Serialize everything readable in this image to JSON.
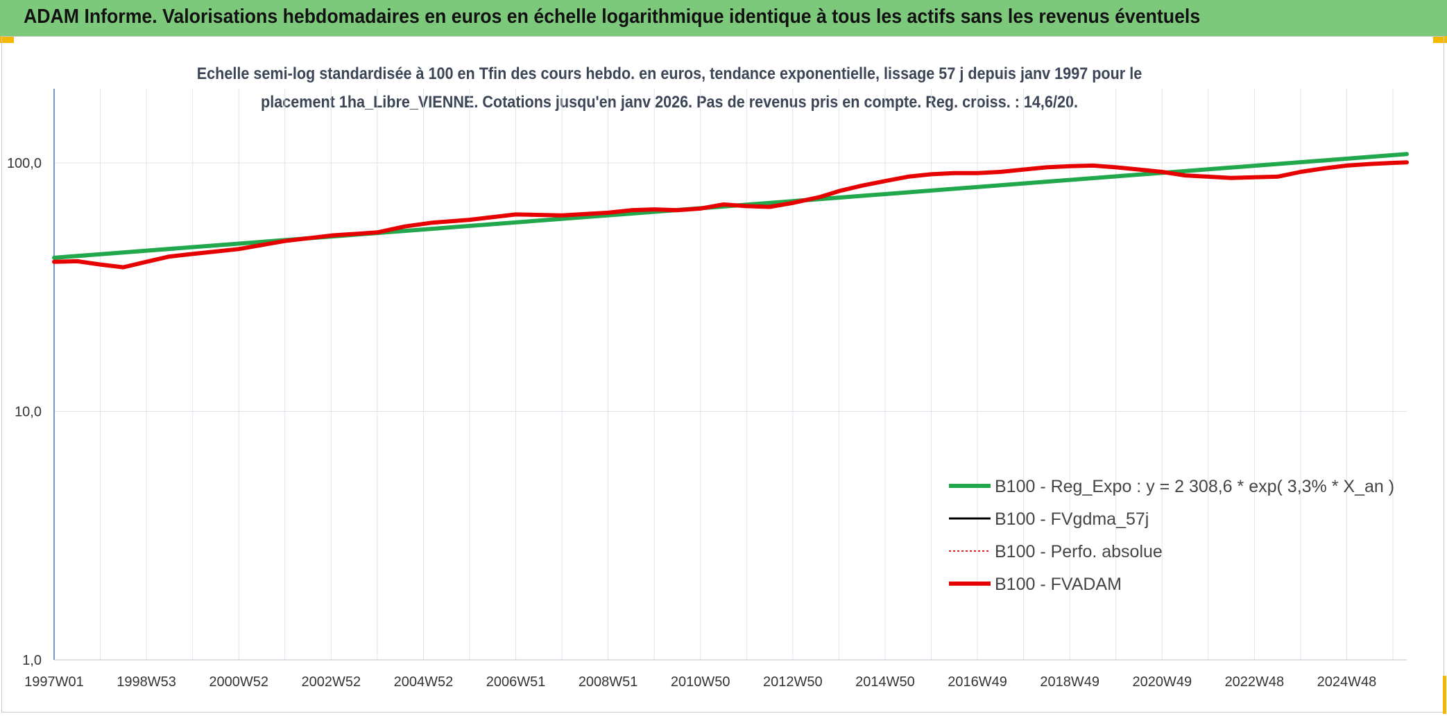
{
  "header": {
    "title": "ADAM Informe. Valorisations hebdomadaires en euros en échelle logarithmique identique à tous les actifs sans les revenus éventuels"
  },
  "chart_data": {
    "type": "line",
    "subtitle_line1": "Echelle semi-log standardisée à 100 en Tfin des cours hebdo. en euros, tendance exponentielle, lissage 57 j depuis janv 1997 pour le",
    "subtitle_line2": "placement 1ha_Libre_VIENNE. Cotations jusqu'en janv 2026. Pas de revenus pris en compte. Reg. croiss. : 14,6/20.",
    "y_scale": "log",
    "ylim": [
      1,
      200
    ],
    "y_ticks": [
      {
        "value": 100,
        "label": "100,0"
      },
      {
        "value": 10,
        "label": "10,0"
      },
      {
        "value": 1,
        "label": "1,0"
      }
    ],
    "x_range": [
      1997.0,
      2026.3
    ],
    "x_ticks": [
      {
        "label": "1997W01",
        "year": 1997.0
      },
      {
        "label": "1998W53",
        "year": 1999.0
      },
      {
        "label": "2000W52",
        "year": 2001.0
      },
      {
        "label": "2002W52",
        "year": 2003.0
      },
      {
        "label": "2004W52",
        "year": 2005.0
      },
      {
        "label": "2006W51",
        "year": 2007.0
      },
      {
        "label": "2008W51",
        "year": 2009.0
      },
      {
        "label": "2010W50",
        "year": 2011.0
      },
      {
        "label": "2012W50",
        "year": 2013.0
      },
      {
        "label": "2014W50",
        "year": 2015.0
      },
      {
        "label": "2016W49",
        "year": 2017.0
      },
      {
        "label": "2018W49",
        "year": 2019.0
      },
      {
        "label": "2020W49",
        "year": 2021.0
      },
      {
        "label": "2022W48",
        "year": 2023.0
      },
      {
        "label": "2024W48",
        "year": 2025.0
      }
    ],
    "legend": [
      {
        "key": "reg_expo",
        "label": "B100 - Reg_Expo : y = 2 308,6 * exp( 3,3% *  X_an )",
        "color": "#22a84c",
        "style": "solid-thick"
      },
      {
        "key": "fvgdma",
        "label": "B100 - FVgdma_57j",
        "color": "#000000",
        "style": "solid"
      },
      {
        "key": "perfo",
        "label": "B100 - Perfo. absolue",
        "color": "#e31a1c",
        "style": "dotted"
      },
      {
        "key": "fvadam",
        "label": "B100 - FVADAM",
        "color": "#e60000",
        "style": "solid-thick"
      }
    ],
    "legend_position": "lower-right",
    "series": [
      {
        "name": "B100 - Reg_Expo",
        "color": "#22a84c",
        "x": [
          1997.0,
          2026.3
        ],
        "values": [
          41.5,
          108.5
        ]
      },
      {
        "name": "B100 - FVADAM",
        "color": "#e60000",
        "x": [
          1997.0,
          1997.5,
          1998.0,
          1998.5,
          1999.0,
          1999.5,
          2000.0,
          2001.0,
          2002.0,
          2003.0,
          2004.0,
          2004.6,
          2005.2,
          2006.0,
          2007.0,
          2008.0,
          2009.0,
          2009.5,
          2010.0,
          2010.5,
          2011.0,
          2011.5,
          2012.0,
          2012.5,
          2013.0,
          2013.6,
          2014.0,
          2014.5,
          2015.0,
          2015.5,
          2016.0,
          2016.5,
          2017.0,
          2017.5,
          2018.0,
          2018.5,
          2019.0,
          2019.5,
          2020.0,
          2020.5,
          2021.0,
          2021.5,
          2022.0,
          2022.5,
          2023.0,
          2023.5,
          2024.0,
          2024.5,
          2025.0,
          2025.5,
          2026.0,
          2026.3
        ],
        "values": [
          40.0,
          40.2,
          39.0,
          38.0,
          40.0,
          42.0,
          43.0,
          45.0,
          48.5,
          51.0,
          52.5,
          55.5,
          57.5,
          59.0,
          62.0,
          61.5,
          63.0,
          64.5,
          65.0,
          64.5,
          65.5,
          68.0,
          67.0,
          66.5,
          69.0,
          73.0,
          77.0,
          81.0,
          84.5,
          88.0,
          90.0,
          91.0,
          91.0,
          92.0,
          94.0,
          96.0,
          97.0,
          97.5,
          96.0,
          94.0,
          92.0,
          89.0,
          88.0,
          87.0,
          87.5,
          88.0,
          92.0,
          95.0,
          97.5,
          99.0,
          100.0,
          100.5
        ]
      }
    ]
  }
}
